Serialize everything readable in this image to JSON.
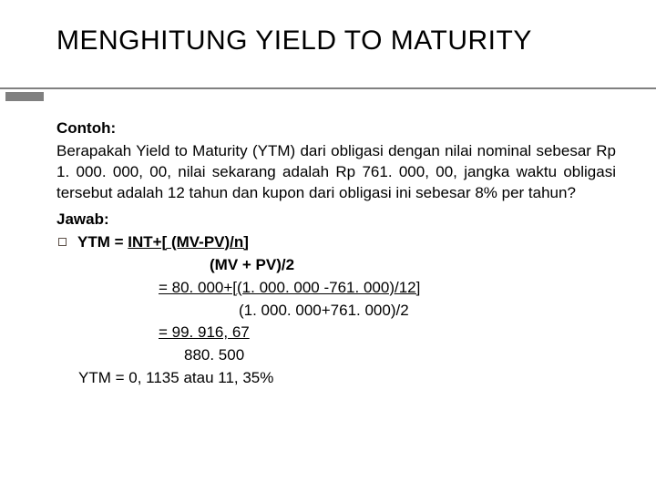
{
  "slide": {
    "title": "MENGHITUNG YIELD TO MATURITY",
    "example_label": "Contoh:",
    "question": "Berapakah Yield to Maturity (YTM) dari obligasi dengan nilai nominal sebesar Rp 1. 000. 000, 00, nilai sekarang adalah Rp 761. 000, 00, jangka waktu obligasi tersebut adalah 12 tahun dan kupon dari obligasi ini sebesar 8% per tahun?",
    "answer_label": "Jawab:",
    "formula": {
      "lhs": "YTM = ",
      "numerator": "INT+[ (MV-PV)/n]",
      "denominator": "(MV + PV)/2",
      "step1_num": "= 80. 000+[(1. 000. 000 -761. 000)/12]",
      "step1_den": "(1. 000. 000+761. 000)/2",
      "step2_num": "= 99. 916, 67",
      "step2_den": "880. 500",
      "result": "YTM = 0, 1135 atau 11, 35%"
    }
  },
  "colors": {
    "text": "#000000",
    "rule": "#808080",
    "bullet_border": "#5c5048",
    "background": "#ffffff"
  },
  "typography": {
    "title_fontsize": 30,
    "body_fontsize": 17,
    "font_family": "Arial"
  }
}
